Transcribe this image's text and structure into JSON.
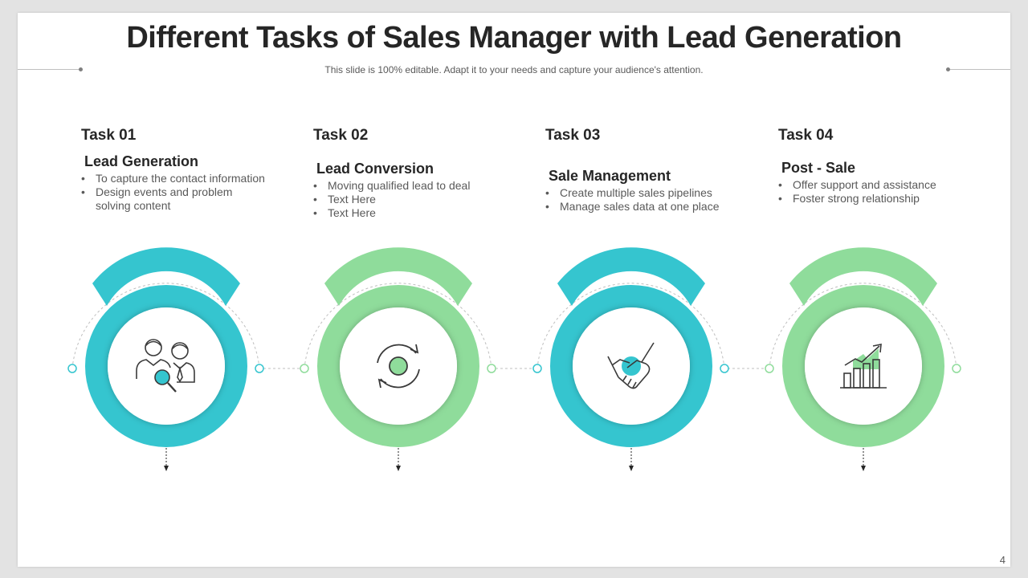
{
  "header": {
    "title": "Different Tasks of Sales Manager with Lead Generation",
    "subtitle": "This slide is 100% editable. Adapt it to your needs and capture your audience's attention."
  },
  "colors": {
    "teal": "#35c5cf",
    "green": "#8fdc9b",
    "text": "#262626",
    "muted": "#595959"
  },
  "tasks": [
    {
      "label": "Task 01",
      "heading": "Lead Generation",
      "bullets": [
        "To capture the contact information",
        "Design events and problem solving content"
      ],
      "icon": "people-search-icon",
      "color": "teal"
    },
    {
      "label": "Task 02",
      "heading": "Lead Conversion",
      "bullets": [
        "Moving qualified lead to deal",
        "Text Here",
        "Text Here"
      ],
      "icon": "refresh-cycle-icon",
      "color": "green"
    },
    {
      "label": "Task 03",
      "heading": "Sale Management",
      "bullets": [
        "Create multiple sales pipelines",
        "Manage sales data at one place"
      ],
      "icon": "handshake-icon",
      "color": "teal"
    },
    {
      "label": "Task 04",
      "heading": "Post - Sale",
      "bullets": [
        "Offer support and assistance",
        "Foster strong relationship"
      ],
      "icon": "growth-chart-icon",
      "color": "green"
    }
  ],
  "page_number": "4"
}
